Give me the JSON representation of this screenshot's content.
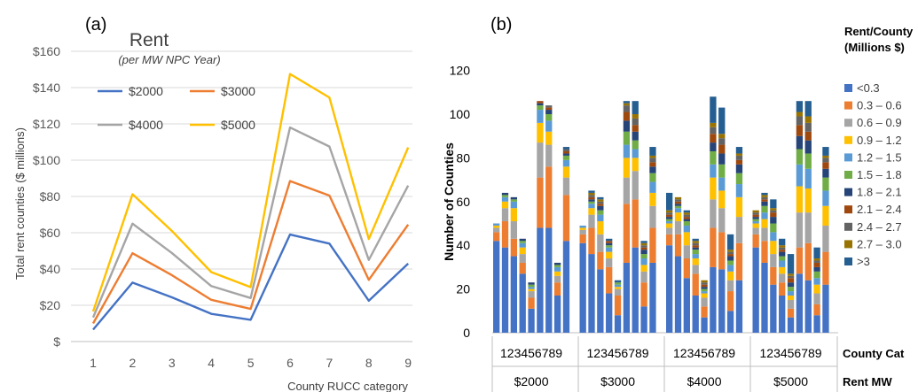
{
  "chart_data": [
    {
      "type": "line",
      "panel_label": "(a)",
      "title": "Rent",
      "subtitle": "(per MW NPC Year)",
      "xlabel": "County RUCC category",
      "ylabel": "Total rent counties ($ millions)",
      "x": [
        1,
        2,
        3,
        4,
        5,
        6,
        7,
        8,
        9
      ],
      "ylim": [
        0,
        160
      ],
      "yticks": [
        "$",
        "$20",
        "$40",
        "$60",
        "$80",
        "$100",
        "$120",
        "$140",
        "$160"
      ],
      "grid": true,
      "legend_position": "top-left",
      "series": [
        {
          "name": "$2000",
          "color": "#4472c4",
          "values": [
            6.6,
            32.5,
            24.4,
            15.3,
            12.0,
            59.0,
            54.0,
            22.5,
            43.0
          ]
        },
        {
          "name": "$3000",
          "color": "#ed7d31",
          "values": [
            10.0,
            48.7,
            36.6,
            23.0,
            18.0,
            88.5,
            80.5,
            34.0,
            64.5
          ]
        },
        {
          "name": "$4000",
          "color": "#a5a5a5",
          "values": [
            13.3,
            65.0,
            48.8,
            30.6,
            24.0,
            118.0,
            107.5,
            45.0,
            86.0
          ]
        },
        {
          "name": "$5000",
          "color": "#ffc000",
          "values": [
            16.6,
            81.2,
            61.0,
            38.3,
            30.0,
            147.5,
            134.5,
            56.5,
            107.0
          ]
        }
      ]
    },
    {
      "type": "bar",
      "stacked": true,
      "panel_label": "(b)",
      "ylabel": "Number of Counties",
      "ylim": [
        0,
        120
      ],
      "yticks": [
        "0",
        "20",
        "40",
        "60",
        "80",
        "100",
        "120"
      ],
      "grid": false,
      "legend_title": "Rent/County (Millions $)",
      "legend_position": "right",
      "category_row_label": "County Cat",
      "group_row_label": "Rent MW",
      "group_labels": [
        "$2000",
        "$3000",
        "$4000",
        "$5000"
      ],
      "tick_labels": [
        "1",
        "2",
        "3",
        "4",
        "5",
        "6",
        "7",
        "8",
        "9"
      ],
      "segments": [
        {
          "name": "<0.3",
          "color": "#4472c4"
        },
        {
          "name": "0.3 – 0.6",
          "color": "#ed7d31"
        },
        {
          "name": "0.6 – 0.9",
          "color": "#a5a5a5"
        },
        {
          "name": "0.9 – 1.2",
          "color": "#ffc000"
        },
        {
          "name": "1.2 – 1.5",
          "color": "#5b9bd5"
        },
        {
          "name": "1.5 – 1.8",
          "color": "#70ad47"
        },
        {
          "name": "1.8 – 2.1",
          "color": "#264478"
        },
        {
          "name": "2.1 – 2.4",
          "color": "#9e480e"
        },
        {
          "name": "2.4 – 2.7",
          "color": "#636363"
        },
        {
          "name": "2.7 – 3.0",
          "color": "#997300"
        },
        {
          "name": ">3",
          "color": "#255e91"
        }
      ],
      "groups": [
        {
          "name": "$2000",
          "bars": [
            [
              42,
              4,
              2,
              1,
              1,
              0,
              0,
              0,
              0,
              0,
              0
            ],
            [
              39,
              12,
              6,
              3,
              2,
              1,
              1,
              0,
              0,
              0,
              0
            ],
            [
              35,
              8,
              8,
              6,
              3,
              1,
              1,
              0,
              0,
              0,
              0
            ],
            [
              27,
              5,
              4,
              3,
              2,
              1,
              1,
              0,
              0,
              0,
              0
            ],
            [
              11,
              5,
              3,
              1,
              1,
              1,
              1,
              0,
              0,
              0,
              0
            ],
            [
              48,
              23,
              16,
              9,
              6,
              2,
              1,
              1,
              0,
              0,
              0
            ],
            [
              48,
              28,
              10,
              6,
              5,
              3,
              2,
              1,
              1,
              0,
              0
            ],
            [
              17,
              6,
              3,
              2,
              2,
              1,
              1,
              0,
              0,
              0,
              0
            ],
            [
              42,
              21,
              8,
              5,
              3,
              2,
              1,
              1,
              1,
              0,
              1
            ]
          ]
        },
        {
          "name": "$3000",
          "bars": [
            [
              41,
              4,
              2,
              1,
              1,
              0,
              0,
              0,
              0,
              0,
              0
            ],
            [
              36,
              12,
              6,
              3,
              2,
              1,
              1,
              1,
              1,
              1,
              1
            ],
            [
              29,
              8,
              8,
              6,
              3,
              2,
              2,
              1,
              1,
              1,
              1
            ],
            [
              18,
              12,
              4,
              3,
              2,
              1,
              1,
              1,
              0,
              0,
              1
            ],
            [
              8,
              9,
              3,
              1,
              1,
              1,
              0,
              0,
              0,
              0,
              1
            ],
            [
              32,
              27,
              12,
              9,
              6,
              6,
              5,
              4,
              3,
              1,
              1
            ],
            [
              39,
              22,
              13,
              6,
              4,
              4,
              4,
              3,
              3,
              2,
              6
            ],
            [
              12,
              11,
              5,
              3,
              3,
              2,
              2,
              1,
              1,
              1,
              1
            ],
            [
              32,
              16,
              10,
              6,
              5,
              4,
              3,
              2,
              2,
              1,
              4
            ]
          ]
        },
        {
          "name": "$4000",
          "bars": [
            [
              40,
              5,
              3,
              2,
              1,
              1,
              1,
              1,
              1,
              1,
              8
            ],
            [
              35,
              10,
              6,
              4,
              2,
              1,
              1,
              1,
              1,
              1,
              0
            ],
            [
              25,
              9,
              6,
              6,
              3,
              2,
              1,
              1,
              1,
              1,
              1
            ],
            [
              17,
              10,
              4,
              3,
              2,
              2,
              1,
              1,
              1,
              1,
              1
            ],
            [
              7,
              5,
              4,
              2,
              1,
              1,
              1,
              1,
              1,
              1,
              0
            ],
            [
              30,
              18,
              13,
              10,
              6,
              6,
              4,
              4,
              3,
              2,
              12
            ],
            [
              29,
              17,
              11,
              8,
              6,
              6,
              5,
              4,
              3,
              2,
              12
            ],
            [
              10,
              9,
              5,
              4,
              3,
              2,
              2,
              1,
              1,
              1,
              7
            ],
            [
              24,
              17,
              12,
              9,
              6,
              5,
              4,
              2,
              2,
              1,
              3
            ]
          ]
        },
        {
          "name": "$5000",
          "bars": [
            [
              39,
              6,
              3,
              2,
              1,
              1,
              1,
              1,
              1,
              1,
              0
            ],
            [
              32,
              10,
              6,
              4,
              3,
              3,
              2,
              1,
              1,
              1,
              1
            ],
            [
              22,
              8,
              6,
              6,
              4,
              4,
              3,
              2,
              1,
              1,
              4
            ],
            [
              17,
              6,
              4,
              3,
              3,
              2,
              2,
              1,
              1,
              1,
              3
            ],
            [
              7,
              4,
              4,
              2,
              2,
              2,
              2,
              2,
              1,
              1,
              9
            ],
            [
              27,
              12,
              16,
              12,
              10,
              7,
              6,
              5,
              4,
              2,
              5
            ],
            [
              24,
              17,
              14,
              11,
              9,
              7,
              6,
              4,
              4,
              3,
              7
            ],
            [
              8,
              5,
              5,
              4,
              3,
              3,
              2,
              2,
              1,
              1,
              5
            ],
            [
              22,
              15,
              12,
              9,
              7,
              6,
              4,
              3,
              2,
              1,
              4
            ]
          ]
        }
      ]
    }
  ]
}
